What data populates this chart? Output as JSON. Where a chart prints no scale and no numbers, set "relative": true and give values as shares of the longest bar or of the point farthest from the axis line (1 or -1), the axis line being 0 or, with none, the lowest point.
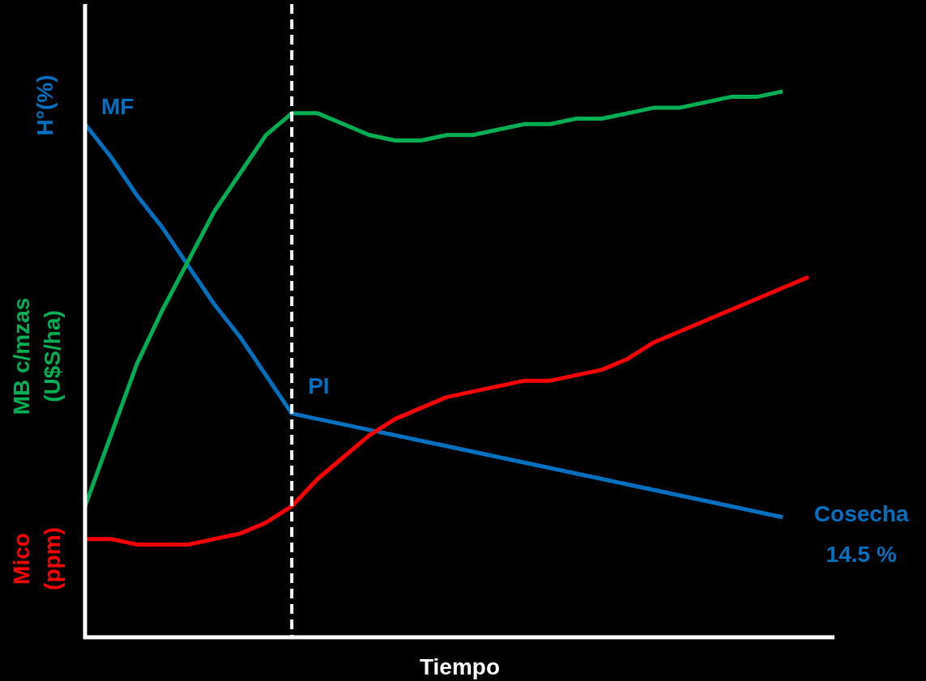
{
  "chart_data": {
    "type": "line",
    "relative": true,
    "xlabel": "Tiempo",
    "categories": [
      null,
      null,
      null,
      null,
      null,
      null,
      null,
      null,
      null,
      null,
      null,
      null,
      null,
      null,
      null,
      null,
      null,
      null,
      null,
      null,
      null,
      null,
      null,
      null,
      null,
      null,
      null,
      null,
      null,
      null
    ],
    "series": [
      {
        "name": "H°(%)",
        "color": "#0070c0",
        "values": [
          0.94,
          0.88,
          0.81,
          0.75,
          0.68,
          0.61,
          0.55,
          0.48,
          0.41,
          0.4,
          0.39,
          0.38,
          0.37,
          0.36,
          0.35,
          0.34,
          0.33,
          0.32,
          0.31,
          0.3,
          0.29,
          0.28,
          0.27,
          0.26,
          0.25,
          0.24,
          0.23,
          0.22,
          null,
          null
        ]
      },
      {
        "name": "MB c/mzas (U$S/ha)",
        "color": "#00b050",
        "values": [
          0.24,
          0.37,
          0.5,
          0.6,
          0.69,
          0.78,
          0.85,
          0.92,
          0.96,
          0.96,
          0.94,
          0.92,
          0.91,
          0.91,
          0.92,
          0.92,
          0.93,
          0.94,
          0.94,
          0.95,
          0.95,
          0.96,
          0.97,
          0.97,
          0.98,
          0.99,
          0.99,
          1.0,
          null,
          null
        ]
      },
      {
        "name": "Mico (ppm)",
        "color": "#ff0000",
        "values": [
          0.18,
          0.18,
          0.17,
          0.17,
          0.17,
          0.18,
          0.19,
          0.21,
          0.24,
          0.29,
          0.33,
          0.37,
          0.4,
          0.42,
          0.44,
          0.45,
          0.46,
          0.47,
          0.47,
          0.48,
          0.49,
          0.51,
          0.54,
          0.56,
          0.58,
          0.6,
          0.62,
          0.64,
          0.66,
          null
        ]
      }
    ],
    "annotations": [
      "MF",
      "PI",
      "Cosecha 14.5 %"
    ],
    "legend": false,
    "grid": false,
    "marker": "none",
    "line_style": "solid"
  }
}
